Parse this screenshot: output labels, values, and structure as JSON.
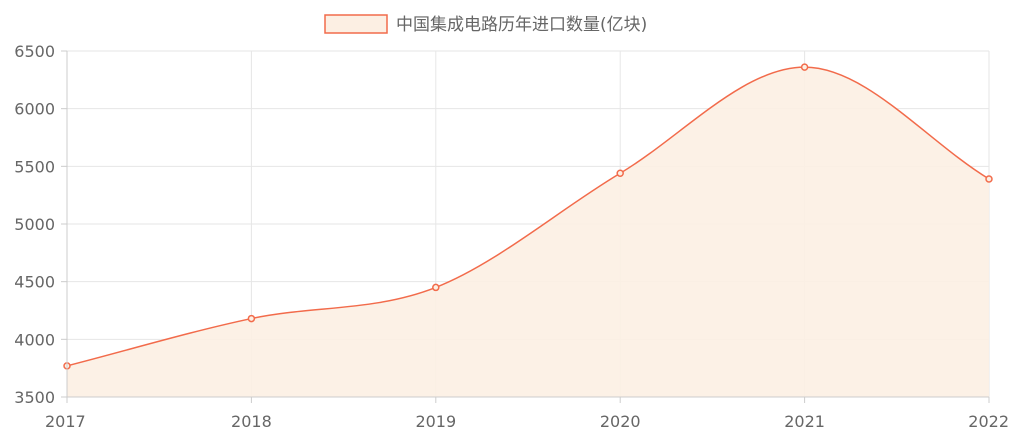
{
  "chart_data": {
    "type": "area",
    "legend": {
      "label": "中国集成电路历年进口数量(亿块)",
      "position": "top-center"
    },
    "x": [
      "2017",
      "2018",
      "2019",
      "2020",
      "2021",
      "2022"
    ],
    "series": [
      {
        "name": "中国集成电路历年进口数量(亿块)",
        "values": [
          3770,
          4180,
          4450,
          5440,
          6360,
          5390
        ]
      }
    ],
    "ylim": [
      3500,
      6500
    ],
    "yticks": [
      "3500",
      "4000",
      "4500",
      "5000",
      "5500",
      "6000",
      "6500"
    ],
    "grid": true,
    "smooth": true,
    "colors": {
      "line": "#f26b4b",
      "fill": "#fcefe3",
      "grid": "#e6e6e6",
      "axis": "#cccccc",
      "tick_text": "#666666"
    }
  }
}
